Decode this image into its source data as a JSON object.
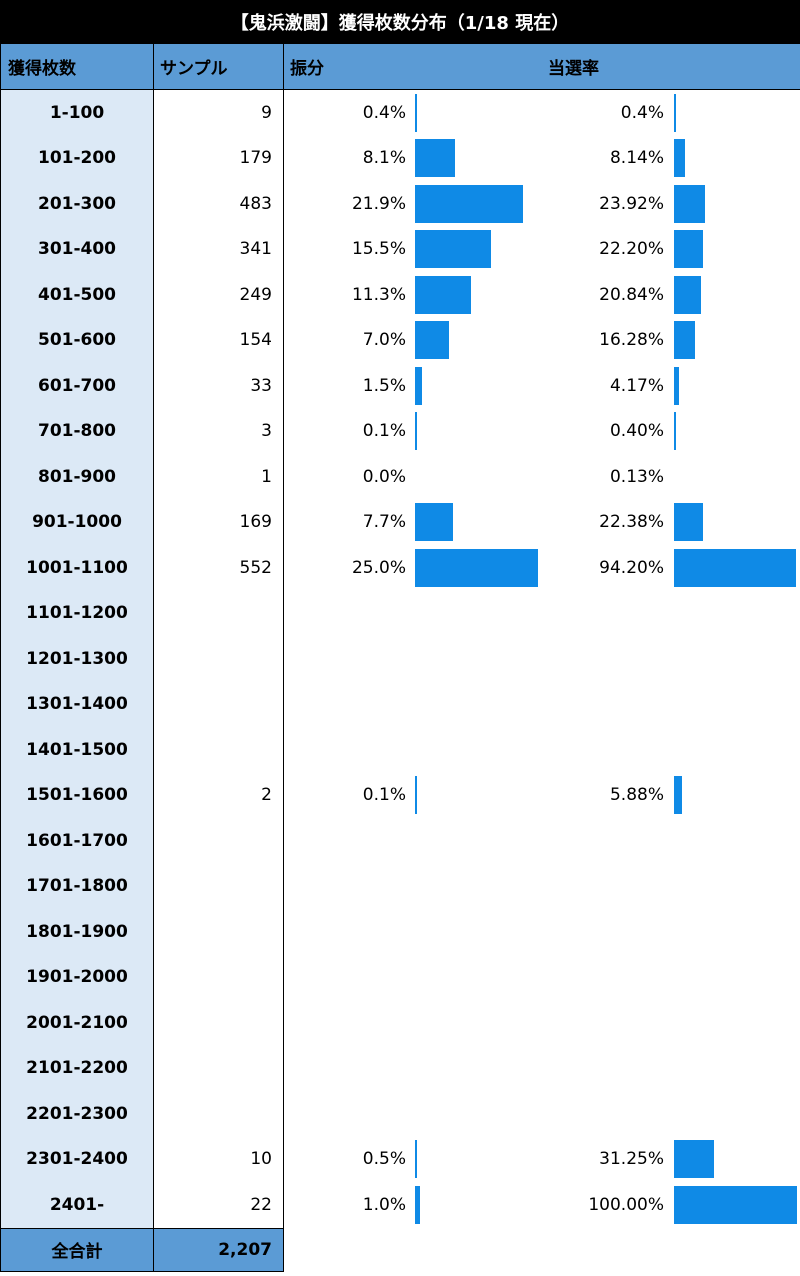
{
  "title": "【鬼浜激闘】獲得枚数分布（1/18 現在）",
  "header": {
    "range": "獲得枚数",
    "sample": "サンプル",
    "share": "振分",
    "rate": "当選率"
  },
  "colors": {
    "title_bg": "#000000",
    "header_bg": "#5b9bd5",
    "range_col_bg": "#dce9f6",
    "bar": "#0f8ae6"
  },
  "chart_data": {
    "type": "table",
    "columns": [
      "獲得枚数",
      "サンプル",
      "振分",
      "当選率"
    ],
    "rows": [
      {
        "range": "1-100",
        "sample": "9",
        "share": "0.4%",
        "rate": "0.4%",
        "share_value": 0.4,
        "rate_value": 0.4
      },
      {
        "range": "101-200",
        "sample": "179",
        "share": "8.1%",
        "rate": "8.14%",
        "share_value": 8.1,
        "rate_value": 8.14
      },
      {
        "range": "201-300",
        "sample": "483",
        "share": "21.9%",
        "rate": "23.92%",
        "share_value": 21.9,
        "rate_value": 23.92
      },
      {
        "range": "301-400",
        "sample": "341",
        "share": "15.5%",
        "rate": "22.20%",
        "share_value": 15.5,
        "rate_value": 22.2
      },
      {
        "range": "401-500",
        "sample": "249",
        "share": "11.3%",
        "rate": "20.84%",
        "share_value": 11.3,
        "rate_value": 20.84
      },
      {
        "range": "501-600",
        "sample": "154",
        "share": "7.0%",
        "rate": "16.28%",
        "share_value": 7.0,
        "rate_value": 16.28
      },
      {
        "range": "601-700",
        "sample": "33",
        "share": "1.5%",
        "rate": "4.17%",
        "share_value": 1.5,
        "rate_value": 4.17
      },
      {
        "range": "701-800",
        "sample": "3",
        "share": "0.1%",
        "rate": "0.40%",
        "share_value": 0.1,
        "rate_value": 0.4
      },
      {
        "range": "801-900",
        "sample": "1",
        "share": "0.0%",
        "rate": "0.13%",
        "share_value": 0.0,
        "rate_value": 0.13
      },
      {
        "range": "901-1000",
        "sample": "169",
        "share": "7.7%",
        "rate": "22.38%",
        "share_value": 7.7,
        "rate_value": 22.38
      },
      {
        "range": "1001-1100",
        "sample": "552",
        "share": "25.0%",
        "rate": "94.20%",
        "share_value": 25.0,
        "rate_value": 94.2
      },
      {
        "range": "1101-1200",
        "sample": "",
        "share": "",
        "rate": "",
        "share_value": null,
        "rate_value": null
      },
      {
        "range": "1201-1300",
        "sample": "",
        "share": "",
        "rate": "",
        "share_value": null,
        "rate_value": null
      },
      {
        "range": "1301-1400",
        "sample": "",
        "share": "",
        "rate": "",
        "share_value": null,
        "rate_value": null
      },
      {
        "range": "1401-1500",
        "sample": "",
        "share": "",
        "rate": "",
        "share_value": null,
        "rate_value": null
      },
      {
        "range": "1501-1600",
        "sample": "2",
        "share": "0.1%",
        "rate": "5.88%",
        "share_value": 0.1,
        "rate_value": 5.88
      },
      {
        "range": "1601-1700",
        "sample": "",
        "share": "",
        "rate": "",
        "share_value": null,
        "rate_value": null
      },
      {
        "range": "1701-1800",
        "sample": "",
        "share": "",
        "rate": "",
        "share_value": null,
        "rate_value": null
      },
      {
        "range": "1801-1900",
        "sample": "",
        "share": "",
        "rate": "",
        "share_value": null,
        "rate_value": null
      },
      {
        "range": "1901-2000",
        "sample": "",
        "share": "",
        "rate": "",
        "share_value": null,
        "rate_value": null
      },
      {
        "range": "2001-2100",
        "sample": "",
        "share": "",
        "rate": "",
        "share_value": null,
        "rate_value": null
      },
      {
        "range": "2101-2200",
        "sample": "",
        "share": "",
        "rate": "",
        "share_value": null,
        "rate_value": null
      },
      {
        "range": "2201-2300",
        "sample": "",
        "share": "",
        "rate": "",
        "share_value": null,
        "rate_value": null
      },
      {
        "range": "2301-2400",
        "sample": "10",
        "share": "0.5%",
        "rate": "31.25%",
        "share_value": 0.5,
        "rate_value": 31.25
      },
      {
        "range": "2401-",
        "sample": "22",
        "share": "1.0%",
        "rate": "100.00%",
        "share_value": 1.0,
        "rate_value": 100.0
      }
    ],
    "total": {
      "label": "全合計",
      "sample": "2,207"
    }
  }
}
